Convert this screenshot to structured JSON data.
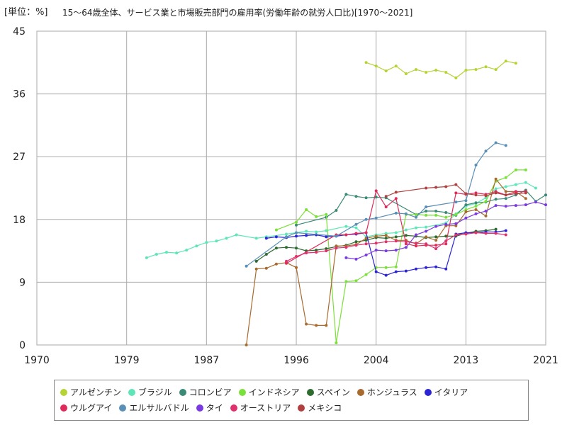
{
  "unit_label": "[単位：%]",
  "chart_data": {
    "type": "line",
    "title": "15～64歳全体、サービス業と市場販売部門の雇用率(労働年齢の就労人口比)[1970～2021]",
    "xlim": [
      1970,
      2021
    ],
    "ylim": [
      0,
      45
    ],
    "x_ticks": [
      1970,
      1979,
      1987,
      1996,
      2004,
      2013,
      2021
    ],
    "y_ticks": [
      0,
      9,
      18,
      27,
      36,
      45
    ],
    "grid": true,
    "legend_position": "bottom",
    "series": [
      {
        "name": "アルゼンチン",
        "color": "#b5d334",
        "points": [
          [
            2003,
            40.5
          ],
          [
            2004,
            40
          ],
          [
            2005,
            39.3
          ],
          [
            2006,
            40
          ],
          [
            2007,
            38.9
          ],
          [
            2008,
            39.5
          ],
          [
            2009,
            39.1
          ],
          [
            2010,
            39.4
          ],
          [
            2011,
            39.1
          ],
          [
            2012,
            38.3
          ],
          [
            2013,
            39.4
          ],
          [
            2014,
            39.5
          ],
          [
            2015,
            39.9
          ],
          [
            2016,
            39.5
          ],
          [
            2017,
            40.7
          ],
          [
            2018,
            40.4
          ]
        ]
      },
      {
        "name": "ブラジル",
        "color": "#5ee6b8",
        "points": [
          [
            1981,
            12.5
          ],
          [
            1982,
            13
          ],
          [
            1983,
            13.3
          ],
          [
            1984,
            13.2
          ],
          [
            1985,
            13.6
          ],
          [
            1986,
            14.2
          ],
          [
            1987,
            14.7
          ],
          [
            1988,
            14.9
          ],
          [
            1989,
            15.3
          ],
          [
            1990,
            15.8
          ],
          [
            1992,
            15.3
          ],
          [
            1993,
            15.5
          ],
          [
            1995,
            15.9
          ],
          [
            1996,
            16.1
          ],
          [
            1997,
            16.3
          ],
          [
            1998,
            16.2
          ],
          [
            1999,
            16.4
          ],
          [
            2001,
            17
          ],
          [
            2002,
            16.8
          ],
          [
            2003,
            15.5
          ],
          [
            2004,
            15.8
          ],
          [
            2005,
            16
          ],
          [
            2006,
            16.1
          ],
          [
            2007,
            16.5
          ],
          [
            2008,
            16.8
          ],
          [
            2009,
            16.9
          ],
          [
            2011,
            17.5
          ],
          [
            2012,
            18.8
          ],
          [
            2013,
            19.9
          ],
          [
            2014,
            20.3
          ],
          [
            2015,
            21.1
          ],
          [
            2016,
            22.4
          ],
          [
            2017,
            22.7
          ],
          [
            2018,
            23
          ],
          [
            2019,
            23.3
          ],
          [
            2020,
            22.5
          ]
        ]
      },
      {
        "name": "コロンビア",
        "color": "#3a8a76",
        "points": [
          [
            1996,
            17.2
          ],
          [
            1999,
            18.3
          ],
          [
            2000,
            19.3
          ],
          [
            2001,
            21.6
          ],
          [
            2002,
            21.3
          ],
          [
            2003,
            21.1
          ],
          [
            2004,
            21.2
          ],
          [
            2005,
            21.1
          ],
          [
            2008,
            18.7
          ],
          [
            2009,
            19.2
          ],
          [
            2010,
            19.2
          ],
          [
            2011,
            19
          ],
          [
            2012,
            18.6
          ],
          [
            2013,
            20.1
          ],
          [
            2014,
            20.4
          ],
          [
            2015,
            20.5
          ],
          [
            2016,
            20.9
          ],
          [
            2017,
            21
          ],
          [
            2018,
            21.5
          ],
          [
            2019,
            22.2
          ],
          [
            2020,
            20.6
          ],
          [
            2021,
            21.5
          ]
        ]
      },
      {
        "name": "インドネシア",
        "color": "#7be03a",
        "points": [
          [
            1994,
            16.5
          ],
          [
            1996,
            17.6
          ],
          [
            1997,
            19.4
          ],
          [
            1998,
            18.4
          ],
          [
            1999,
            18.7
          ],
          [
            2000,
            0.3
          ],
          [
            2001,
            9.1
          ],
          [
            2002,
            9.2
          ],
          [
            2003,
            10.1
          ],
          [
            2004,
            11.1
          ],
          [
            2005,
            11.1
          ],
          [
            2006,
            11.2
          ],
          [
            2007,
            18.7
          ],
          [
            2008,
            18.7
          ],
          [
            2009,
            18.6
          ],
          [
            2010,
            18.6
          ],
          [
            2011,
            18.3
          ],
          [
            2012,
            18.7
          ],
          [
            2013,
            19.4
          ],
          [
            2014,
            19.9
          ],
          [
            2015,
            20.6
          ],
          [
            2016,
            23.5
          ],
          [
            2017,
            24
          ],
          [
            2018,
            25.1
          ],
          [
            2019,
            25.1
          ]
        ]
      },
      {
        "name": "スペイン",
        "color": "#2e6b2e",
        "points": [
          [
            1992,
            12
          ],
          [
            1993,
            13
          ],
          [
            1994,
            13.9
          ],
          [
            1995,
            14
          ],
          [
            1996,
            13.9
          ],
          [
            1997,
            13.5
          ],
          [
            1998,
            13.6
          ],
          [
            1999,
            13.8
          ],
          [
            2000,
            14.1
          ],
          [
            2001,
            14.3
          ],
          [
            2002,
            14.8
          ],
          [
            2003,
            15
          ],
          [
            2004,
            15.4
          ],
          [
            2005,
            15.3
          ],
          [
            2006,
            15.5
          ],
          [
            2007,
            15.7
          ],
          [
            2008,
            15.6
          ],
          [
            2009,
            15.4
          ],
          [
            2010,
            15.5
          ],
          [
            2011,
            15.6
          ],
          [
            2012,
            15.6
          ],
          [
            2013,
            16
          ],
          [
            2014,
            16.3
          ],
          [
            2015,
            16.4
          ],
          [
            2016,
            16.6
          ]
        ]
      },
      {
        "name": "ホンジュラス",
        "color": "#a86a2e",
        "points": [
          [
            1991,
            0
          ],
          [
            1992,
            10.9
          ],
          [
            1993,
            11
          ],
          [
            1994,
            11.6
          ],
          [
            1995,
            11.8
          ],
          [
            1996,
            11.1
          ],
          [
            1997,
            3
          ],
          [
            1998,
            2.8
          ],
          [
            1999,
            2.8
          ],
          [
            2000,
            14.2
          ],
          [
            2001,
            14.2
          ],
          [
            2002,
            14.4
          ],
          [
            2003,
            15.3
          ],
          [
            2004,
            15.6
          ],
          [
            2005,
            15.7
          ],
          [
            2006,
            15
          ],
          [
            2007,
            15
          ],
          [
            2008,
            14.5
          ],
          [
            2009,
            15.5
          ],
          [
            2010,
            15
          ],
          [
            2011,
            17.1
          ],
          [
            2012,
            17.1
          ],
          [
            2013,
            19.1
          ],
          [
            2014,
            19.4
          ],
          [
            2015,
            18.5
          ],
          [
            2016,
            23.8
          ],
          [
            2017,
            22
          ],
          [
            2018,
            22
          ],
          [
            2019,
            21
          ]
        ]
      },
      {
        "name": "イタリア",
        "color": "#2b24d6",
        "points": [
          [
            1993,
            15.3
          ],
          [
            1994,
            15.5
          ],
          [
            1995,
            15.4
          ],
          [
            1996,
            15.6
          ],
          [
            1997,
            15.7
          ],
          [
            1998,
            15.8
          ],
          [
            1999,
            15.5
          ],
          [
            2000,
            15.6
          ],
          [
            2001,
            15.8
          ],
          [
            2002,
            15.9
          ],
          [
            2003,
            16.1
          ],
          [
            2004,
            10.5
          ],
          [
            2005,
            10
          ],
          [
            2006,
            10.5
          ],
          [
            2007,
            10.6
          ],
          [
            2008,
            10.9
          ],
          [
            2009,
            11.1
          ],
          [
            2010,
            11.2
          ],
          [
            2011,
            10.9
          ],
          [
            2012,
            15.9
          ],
          [
            2013,
            16.1
          ],
          [
            2014,
            16.1
          ],
          [
            2015,
            16.2
          ],
          [
            2016,
            16.2
          ],
          [
            2017,
            16.4
          ]
        ]
      },
      {
        "name": "ウルグアイ",
        "color": "#e02a5a",
        "points": [
          [
            1995,
            11.7
          ],
          [
            2000,
            15.8
          ],
          [
            2001,
            15.8
          ],
          [
            2002,
            16
          ],
          [
            2003,
            16.1
          ],
          [
            2004,
            22.1
          ],
          [
            2005,
            19.8
          ],
          [
            2006,
            21
          ],
          [
            2007,
            14.5
          ],
          [
            2008,
            14.2
          ],
          [
            2009,
            14.3
          ],
          [
            2010,
            14.3
          ],
          [
            2011,
            14.5
          ],
          [
            2012,
            21.8
          ],
          [
            2013,
            21.6
          ],
          [
            2014,
            21.8
          ],
          [
            2015,
            21.6
          ],
          [
            2016,
            22
          ],
          [
            2017,
            21.5
          ],
          [
            2018,
            22
          ],
          [
            2019,
            22
          ]
        ]
      },
      {
        "name": "エルサルバドル",
        "color": "#5a8fb8",
        "points": [
          [
            1991,
            11.3
          ],
          [
            1995,
            15.5
          ],
          [
            1996,
            16.1
          ],
          [
            2000,
            15.6
          ],
          [
            2002,
            17.3
          ],
          [
            2003,
            18
          ],
          [
            2004,
            18.2
          ],
          [
            2006,
            18.9
          ],
          [
            2007,
            18.8
          ],
          [
            2008,
            18.3
          ],
          [
            2009,
            19.8
          ],
          [
            2012,
            20.5
          ],
          [
            2013,
            20.7
          ],
          [
            2014,
            25.8
          ],
          [
            2015,
            27.8
          ],
          [
            2016,
            29
          ],
          [
            2017,
            28.6
          ]
        ]
      },
      {
        "name": "タイ",
        "color": "#7a3ae0",
        "points": [
          [
            2001,
            12.5
          ],
          [
            2002,
            12.3
          ],
          [
            2003,
            12.9
          ],
          [
            2004,
            13.6
          ],
          [
            2005,
            13.5
          ],
          [
            2006,
            13.6
          ],
          [
            2007,
            14
          ],
          [
            2008,
            15.8
          ],
          [
            2009,
            16.3
          ],
          [
            2010,
            17
          ],
          [
            2011,
            17.3
          ],
          [
            2012,
            17.4
          ],
          [
            2013,
            18.2
          ],
          [
            2014,
            18.8
          ],
          [
            2015,
            19.2
          ],
          [
            2016,
            20
          ],
          [
            2017,
            19.9
          ],
          [
            2018,
            20
          ],
          [
            2019,
            20.1
          ],
          [
            2020,
            20.5
          ],
          [
            2021,
            20.1
          ]
        ]
      },
      {
        "name": "オーストリア",
        "color": "#e0306e",
        "points": [
          [
            1995,
            12
          ],
          [
            1996,
            12.7
          ],
          [
            1997,
            13.2
          ],
          [
            1998,
            13.3
          ],
          [
            1999,
            13.5
          ],
          [
            2000,
            13.9
          ],
          [
            2001,
            14
          ],
          [
            2002,
            14.3
          ],
          [
            2003,
            14.5
          ],
          [
            2004,
            14.6
          ],
          [
            2005,
            14.8
          ],
          [
            2006,
            14.9
          ],
          [
            2007,
            14.8
          ],
          [
            2008,
            14.6
          ],
          [
            2009,
            14.5
          ],
          [
            2010,
            13.8
          ],
          [
            2011,
            14.9
          ],
          [
            2012,
            15.8
          ],
          [
            2013,
            15.9
          ],
          [
            2014,
            16.1
          ],
          [
            2015,
            16
          ],
          [
            2016,
            16
          ],
          [
            2017,
            15.8
          ]
        ]
      },
      {
        "name": "メキシコ",
        "color": "#b04040",
        "points": [
          [
            2005,
            21.3
          ],
          [
            2006,
            21.9
          ],
          [
            2009,
            22.5
          ],
          [
            2010,
            22.6
          ],
          [
            2011,
            22.7
          ],
          [
            2012,
            23
          ],
          [
            2013,
            21.7
          ],
          [
            2014,
            21.5
          ],
          [
            2015,
            21.4
          ],
          [
            2016,
            21.8
          ],
          [
            2017,
            21.5
          ],
          [
            2018,
            21.7
          ],
          [
            2019,
            21.8
          ]
        ]
      }
    ]
  }
}
